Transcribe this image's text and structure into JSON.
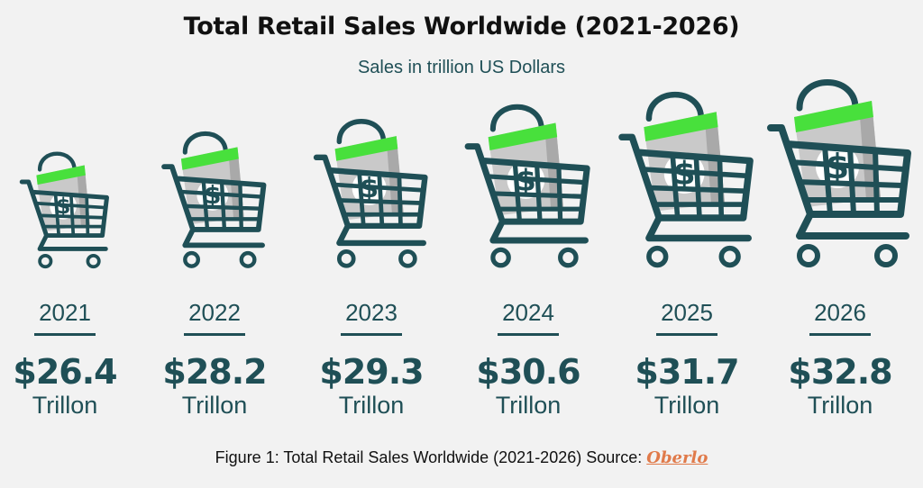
{
  "chart_data": {
    "type": "bar",
    "title": "Total Retail Sales Worldwide (2021-2026)",
    "subtitle": "Sales in trillion US Dollars",
    "categories": [
      "2021",
      "2022",
      "2023",
      "2024",
      "2025",
      "2026"
    ],
    "values": [
      26.4,
      28.2,
      29.3,
      30.6,
      31.7,
      32.8
    ],
    "value_labels": [
      "$26.4",
      "$28.2",
      "$29.3",
      "$30.6",
      "$31.7",
      "$32.8"
    ],
    "unit_label": "Trillon",
    "legend": "none",
    "grid": false
  },
  "caption": {
    "text": "Figure 1: Total Retail Sales Worldwide (2021-2026) Source:",
    "source": "Oberlo"
  },
  "colors": {
    "primary": "#1f4f56",
    "accent_green": "#48e03c",
    "bag_gray": "#c9c9c9",
    "background": "#f2f2f2",
    "source_link": "#e07a4a"
  },
  "icons": [
    "shopping-cart-icon",
    "shopping-bag-icon",
    "dollar-sign-icon"
  ]
}
